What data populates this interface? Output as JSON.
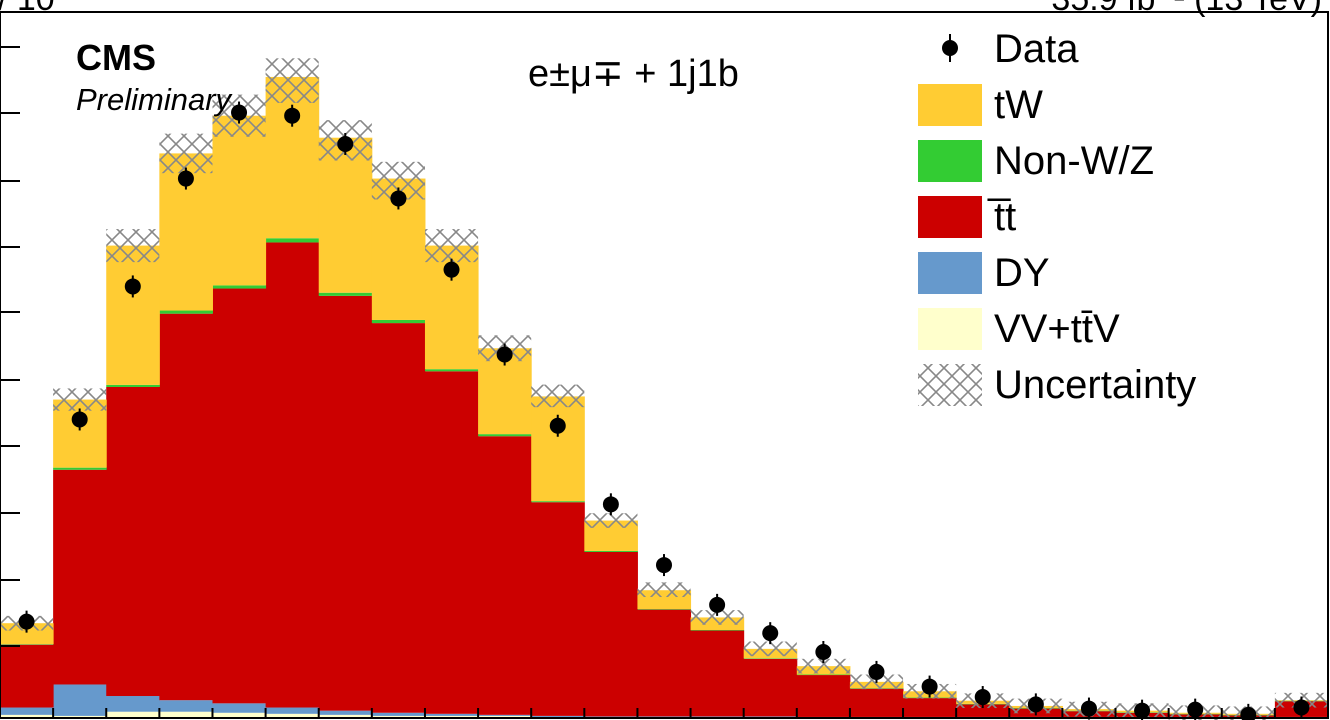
{
  "header": {
    "left_clipped": "/ 10",
    "right_clipped": "35.9 fb⁻¹ (13 TeV)"
  },
  "labels": {
    "experiment": "CMS",
    "status": "Preliminary",
    "channel": "e±μ∓ + 1j1b"
  },
  "colors": {
    "tW": "#ffcc33",
    "nonWZ": "#33cc33",
    "ttbar": "#cc0000",
    "DY": "#6699cc",
    "VV": "#ffffcc",
    "data": "#000000",
    "uncertainty": "#888888"
  },
  "chart_data": {
    "type": "bar",
    "stacked": true,
    "histogram": true,
    "nbins": 25,
    "ylim": [
      0,
      6740
    ],
    "series": [
      {
        "name": "VV+tt̄V",
        "key": "VV",
        "values": [
          30,
          20,
          60,
          60,
          50,
          40,
          30,
          20,
          20,
          20,
          10,
          10,
          10,
          10,
          10,
          5,
          5,
          5,
          5,
          5,
          5,
          5,
          5,
          5,
          5
        ]
      },
      {
        "name": "DY",
        "key": "DY",
        "values": [
          70,
          300,
          150,
          110,
          90,
          60,
          40,
          30,
          20,
          10,
          10,
          5,
          5,
          5,
          5,
          5,
          5,
          5,
          5,
          5,
          5,
          5,
          5,
          5,
          5
        ]
      },
      {
        "name": "t̅t",
        "key": "ttbar",
        "values": [
          600,
          2050,
          2950,
          3690,
          3960,
          4440,
          3960,
          3720,
          3270,
          2660,
          2040,
          1570,
          1020,
          820,
          550,
          400,
          270,
          180,
          120,
          80,
          55,
          40,
          25,
          15,
          150
        ]
      },
      {
        "name": "Non-W/Z",
        "key": "nonWZ",
        "values": [
          5,
          20,
          20,
          30,
          30,
          40,
          30,
          30,
          20,
          20,
          10,
          10,
          5,
          5,
          5,
          5,
          5,
          5,
          5,
          5,
          5,
          5,
          5,
          5,
          5
        ]
      },
      {
        "name": "tW",
        "key": "tW",
        "values": [
          200,
          650,
          1330,
          1500,
          1620,
          1540,
          1480,
          1350,
          1180,
          820,
          1000,
          290,
          180,
          120,
          90,
          80,
          60,
          60,
          30,
          20,
          15,
          15,
          10,
          10,
          5
        ]
      }
    ],
    "uncertainty_totals": [
      905,
      3040,
      4510,
      5390,
      5750,
      6085,
      5515,
      5130,
      4510,
      3530,
      3075,
      1885,
      1225,
      960,
      660,
      495,
      345,
      255,
      165,
      115,
      85,
      70,
      50,
      40,
      170
    ],
    "data": [
      920,
      2850,
      4120,
      5150,
      5780,
      5750,
      5480,
      4960,
      4280,
      3470,
      2790,
      2040,
      1460,
      1080,
      810,
      630,
      440,
      300,
      200,
      130,
      90,
      70,
      80,
      30,
      100
    ],
    "legend": [
      {
        "label": "Data",
        "key": "data",
        "style": "marker"
      },
      {
        "label": "tW",
        "key": "tW",
        "style": "fill"
      },
      {
        "label": "Non-W/Z",
        "key": "nonWZ",
        "style": "fill"
      },
      {
        "label": "t̅t",
        "key": "ttbar",
        "style": "fill"
      },
      {
        "label": "DY",
        "key": "DY",
        "style": "fill"
      },
      {
        "label": "VV+tt̄V",
        "key": "VV",
        "style": "fill"
      },
      {
        "label": "Uncertainty",
        "key": "uncertainty",
        "style": "hatch"
      }
    ],
    "legend_position": "top-right"
  }
}
